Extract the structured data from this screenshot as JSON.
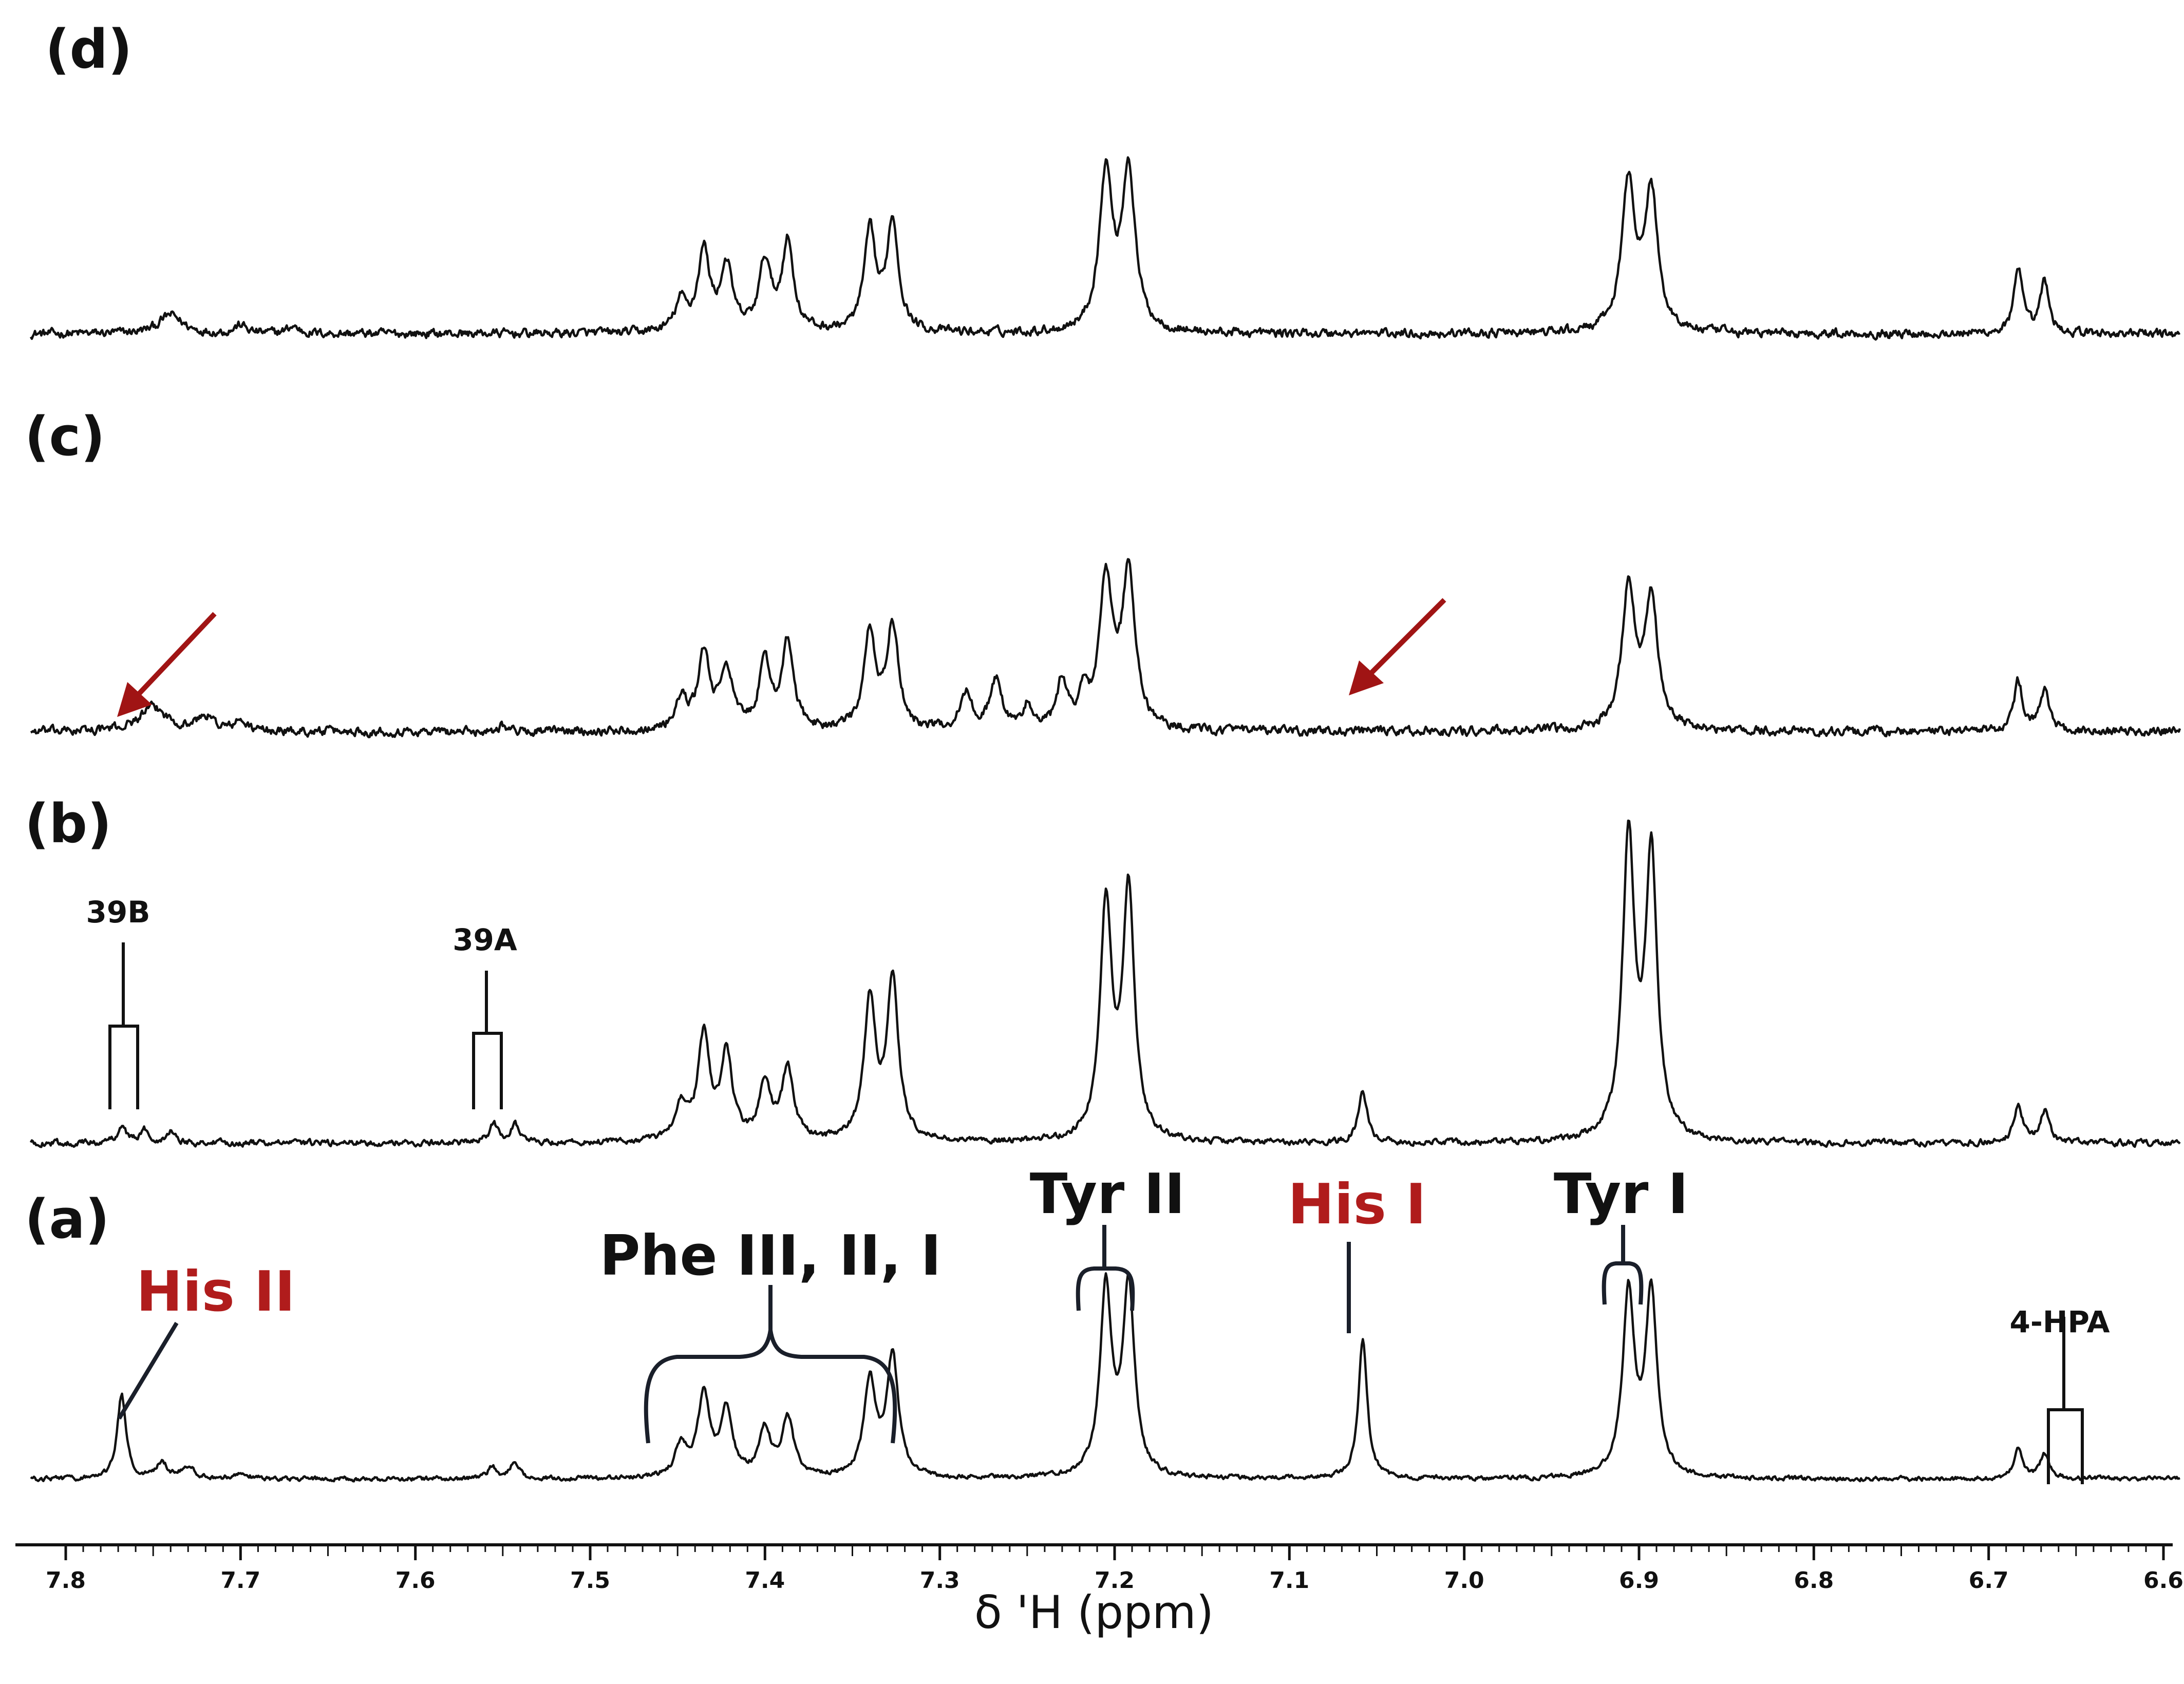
{
  "chart_data": {
    "type": "line",
    "xlabel": "δ 'H (ppm)",
    "x_reversed": true,
    "xlim": [
      7.82,
      6.59
    ],
    "x_major_ticks": [
      7.8,
      7.7,
      7.6,
      7.5,
      7.4,
      7.3,
      7.2,
      7.1,
      7.0,
      6.9,
      6.8,
      6.7,
      6.6
    ],
    "tick_labels": [
      "7.8",
      "7.7",
      "7.6",
      "7.5",
      "7.4",
      "7.3",
      "7.2",
      "7.1",
      "7.0",
      "6.9",
      "6.8",
      "6.7",
      "6.6"
    ],
    "colors": {
      "ink": "#111111",
      "highlight_red": "#b01c1c",
      "arrow_red": "#a01414"
    },
    "series": [
      {
        "label": "(d)",
        "noise": 0.06,
        "peaks": [
          [
            7.74,
            0.16,
            0.008
          ],
          [
            7.7,
            0.07,
            0.004
          ],
          [
            7.67,
            0.06,
            0.004
          ],
          [
            7.448,
            0.25,
            0.004
          ],
          [
            7.435,
            0.68,
            0.004
          ],
          [
            7.422,
            0.55,
            0.004
          ],
          [
            7.4,
            0.58,
            0.004
          ],
          [
            7.387,
            0.75,
            0.004
          ],
          [
            7.34,
            0.83,
            0.004
          ],
          [
            7.327,
            0.93,
            0.004
          ],
          [
            7.205,
            1.32,
            0.0045
          ],
          [
            7.192,
            1.35,
            0.0045
          ],
          [
            6.906,
            1.26,
            0.0045
          ],
          [
            6.893,
            1.16,
            0.0045
          ],
          [
            6.683,
            0.53,
            0.003
          ],
          [
            6.668,
            0.43,
            0.003
          ]
        ]
      },
      {
        "label": "(c)",
        "noise": 0.06,
        "peaks": [
          [
            7.75,
            0.2,
            0.01
          ],
          [
            7.72,
            0.12,
            0.006
          ],
          [
            7.7,
            0.08,
            0.004
          ],
          [
            7.55,
            0.06,
            0.003
          ],
          [
            7.448,
            0.25,
            0.004
          ],
          [
            7.435,
            0.64,
            0.004
          ],
          [
            7.422,
            0.52,
            0.004
          ],
          [
            7.4,
            0.55,
            0.004
          ],
          [
            7.387,
            0.72,
            0.004
          ],
          [
            7.34,
            0.8,
            0.004
          ],
          [
            7.327,
            0.87,
            0.004
          ],
          [
            7.285,
            0.3,
            0.004
          ],
          [
            7.268,
            0.42,
            0.004
          ],
          [
            7.25,
            0.2,
            0.003
          ],
          [
            7.23,
            0.4,
            0.0035
          ],
          [
            7.218,
            0.28,
            0.003
          ],
          [
            7.205,
            1.24,
            0.0045
          ],
          [
            7.192,
            1.3,
            0.0045
          ],
          [
            6.906,
            1.2,
            0.0045
          ],
          [
            6.893,
            1.1,
            0.0045
          ],
          [
            6.683,
            0.42,
            0.003
          ],
          [
            6.668,
            0.36,
            0.003
          ]
        ]
      },
      {
        "label": "(b)",
        "noise": 0.04,
        "peaks": [
          [
            7.768,
            0.14,
            0.003
          ],
          [
            7.755,
            0.1,
            0.003
          ],
          [
            7.74,
            0.1,
            0.003
          ],
          [
            7.555,
            0.15,
            0.003
          ],
          [
            7.543,
            0.15,
            0.003
          ],
          [
            7.448,
            0.3,
            0.004
          ],
          [
            7.435,
            0.84,
            0.004
          ],
          [
            7.422,
            0.68,
            0.004
          ],
          [
            7.4,
            0.45,
            0.004
          ],
          [
            7.387,
            0.58,
            0.004
          ],
          [
            7.34,
            1.12,
            0.004
          ],
          [
            7.327,
            1.28,
            0.004
          ],
          [
            7.205,
            1.88,
            0.004
          ],
          [
            7.192,
            2.03,
            0.004
          ],
          [
            7.058,
            0.42,
            0.003
          ],
          [
            6.906,
            2.45,
            0.004
          ],
          [
            6.893,
            2.3,
            0.004
          ],
          [
            6.683,
            0.3,
            0.003
          ],
          [
            6.668,
            0.26,
            0.003
          ]
        ]
      },
      {
        "label": "(a)",
        "noise": 0.03,
        "peaks": [
          [
            7.768,
            0.68,
            0.003
          ],
          [
            7.745,
            0.12,
            0.004
          ],
          [
            7.73,
            0.1,
            0.004
          ],
          [
            7.7,
            0.05,
            0.004
          ],
          [
            7.556,
            0.09,
            0.003
          ],
          [
            7.543,
            0.14,
            0.003
          ],
          [
            7.448,
            0.26,
            0.004
          ],
          [
            7.435,
            0.67,
            0.004
          ],
          [
            7.422,
            0.54,
            0.004
          ],
          [
            7.4,
            0.38,
            0.004
          ],
          [
            7.387,
            0.48,
            0.004
          ],
          [
            7.34,
            0.77,
            0.004
          ],
          [
            7.327,
            0.98,
            0.004
          ],
          [
            7.205,
            1.52,
            0.004
          ],
          [
            7.192,
            1.53,
            0.004
          ],
          [
            7.058,
            1.13,
            0.003
          ],
          [
            6.906,
            1.48,
            0.004
          ],
          [
            6.893,
            1.48,
            0.004
          ],
          [
            6.683,
            0.24,
            0.003
          ],
          [
            6.668,
            0.21,
            0.003
          ]
        ]
      }
    ],
    "annotations": [
      {
        "text": "His II",
        "color": "red",
        "x": 7.768
      },
      {
        "text": "Phe III, II, I",
        "color": "black",
        "x_range": [
          7.455,
          7.315
        ]
      },
      {
        "text": "Tyr II",
        "color": "black",
        "x_range": [
          7.213,
          7.185
        ]
      },
      {
        "text": "His I",
        "color": "red",
        "x": 7.058
      },
      {
        "text": "Tyr I",
        "color": "black",
        "x_range": [
          6.91,
          6.89
        ]
      },
      {
        "text": "4-HPA",
        "color": "black",
        "x": 6.65
      },
      {
        "text": "39B",
        "color": "black",
        "x": 7.762
      },
      {
        "text": "39A",
        "color": "black",
        "x": 7.55
      }
    ],
    "arrows": [
      {
        "series": "(c)",
        "points_to": 7.765,
        "color": "red"
      },
      {
        "series": "(c)",
        "points_to": 7.065,
        "color": "red"
      }
    ]
  }
}
